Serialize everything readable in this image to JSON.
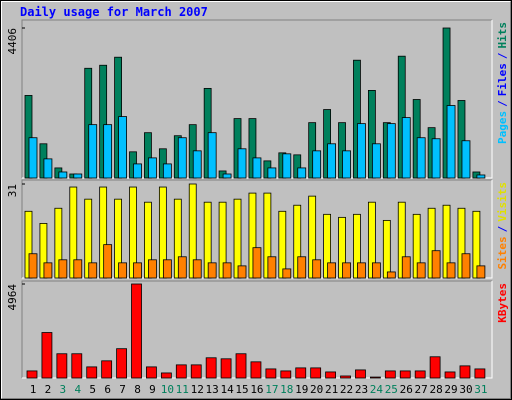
{
  "chart_data": [
    {
      "type": "bar",
      "title": "Daily usage for March 2007",
      "ylim": [
        0,
        4406
      ],
      "yticks": [
        4406
      ],
      "legend": [
        {
          "label": "Pages",
          "color": "#00c0ff"
        },
        {
          "label": "/",
          "color": "#0000ff"
        },
        {
          "label": "Files",
          "color": "#0000ff"
        },
        {
          "label": "/",
          "color": "#0000ff"
        },
        {
          "label": "Hits",
          "color": "#00805c"
        }
      ],
      "series": [
        {
          "name": "Hits",
          "color": "#00805c",
          "values": [
            2425,
            1005,
            296,
            118,
            3223,
            3312,
            3548,
            769,
            1331,
            858,
            1242,
            1567,
            2632,
            207,
            1745,
            1745,
            503,
            739,
            680,
            1626,
            2011,
            1626,
            3460,
            2573,
            1626,
            3578,
            2306,
            1479,
            4406,
            2277,
            177
          ]
        },
        {
          "name": "Pages",
          "color": "#00c0ff",
          "values": [
            1183,
            562,
            177,
            118,
            1567,
            1567,
            1804,
            414,
            591,
            414,
            1183,
            798,
            1331,
            118,
            858,
            591,
            296,
            710,
            296,
            798,
            1005,
            798,
            1597,
            1005,
            1597,
            1774,
            1183,
            1153,
            2129,
            1094,
            89
          ]
        }
      ]
    },
    {
      "type": "bar",
      "ylim": [
        0,
        31
      ],
      "yticks": [
        31
      ],
      "legend": [
        {
          "label": "Sites",
          "color": "#ff8000"
        },
        {
          "label": "/",
          "color": "#0000ff"
        },
        {
          "label": "Visits",
          "color": "#e0e000"
        }
      ],
      "series": [
        {
          "name": "Visits",
          "color": "#ffff00",
          "values": [
            22,
            18,
            23,
            30,
            26,
            30,
            26,
            30,
            25,
            30,
            26,
            31,
            25,
            25,
            26,
            28,
            28,
            22,
            24,
            27,
            21,
            20,
            21,
            25,
            19,
            25,
            21,
            23,
            24,
            23,
            22
          ]
        },
        {
          "name": "Sites",
          "color": "#ff8000",
          "values": [
            8,
            5,
            6,
            6,
            5,
            11,
            5,
            5,
            6,
            6,
            7,
            6,
            5,
            5,
            4,
            10,
            7,
            3,
            7,
            6,
            5,
            5,
            5,
            5,
            2,
            7,
            5,
            9,
            5,
            8,
            4
          ]
        }
      ]
    },
    {
      "type": "bar",
      "ylim": [
        0,
        4964
      ],
      "yticks": [
        4964
      ],
      "legend": [
        {
          "label": "KBytes",
          "color": "#ff0000"
        }
      ],
      "series": [
        {
          "name": "KBytes",
          "color": "#ff0000",
          "values": [
            374,
            2402,
            1281,
            1281,
            587,
            907,
            1548,
            4964,
            587,
            267,
            694,
            694,
            1068,
            1014,
            1281,
            854,
            480,
            374,
            534,
            534,
            320,
            107,
            427,
            50,
            374,
            374,
            374,
            1121,
            320,
            641,
            480
          ]
        }
      ],
      "categories": [
        "1",
        "2",
        "3",
        "4",
        "5",
        "6",
        "7",
        "8",
        "9",
        "10",
        "11",
        "12",
        "13",
        "14",
        "15",
        "16",
        "17",
        "18",
        "19",
        "20",
        "21",
        "22",
        "23",
        "24",
        "25",
        "26",
        "27",
        "28",
        "29",
        "30",
        "31"
      ],
      "category_colors": [
        "#000000",
        "#000000",
        "#00805c",
        "#00805c",
        "#000000",
        "#000000",
        "#000000",
        "#000000",
        "#000000",
        "#00805c",
        "#00805c",
        "#000000",
        "#000000",
        "#000000",
        "#000000",
        "#000000",
        "#00805c",
        "#00805c",
        "#000000",
        "#000000",
        "#000000",
        "#000000",
        "#000000",
        "#00805c",
        "#00805c",
        "#000000",
        "#000000",
        "#000000",
        "#000000",
        "#000000",
        "#00805c"
      ]
    }
  ]
}
